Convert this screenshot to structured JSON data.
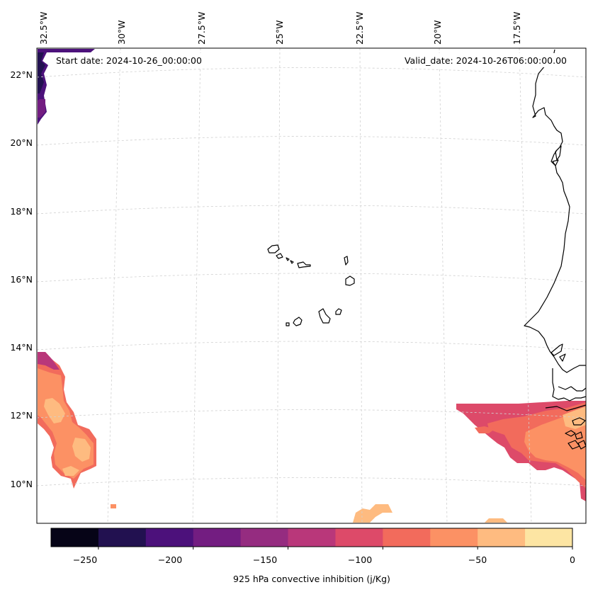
{
  "map": {
    "start_date_label": "Start date: 2024-10-26_00:00:00",
    "valid_date_label": "Valid_date: 2024-10-26T06:00:00.00",
    "lon_labels": [
      "32.5°W",
      "30°W",
      "27.5°W",
      "25°W",
      "22.5°W",
      "20°W",
      "17.5°W"
    ],
    "lat_labels": [
      "22°N",
      "20°N",
      "18°N",
      "16°N",
      "14°N",
      "12°N",
      "10°N"
    ]
  },
  "colorbar": {
    "label": "925 hPa convective inhibition (j/Kg)",
    "ticks": [
      "−250",
      "−200",
      "−150",
      "−100",
      "−50",
      "0"
    ],
    "range": [
      -275,
      0
    ],
    "step": 25,
    "colors": [
      "#060417",
      "#221150",
      "#4c117b",
      "#731d81",
      "#952c80",
      "#b9377a",
      "#dd4a69",
      "#f26b5c",
      "#fc9164",
      "#febb80",
      "#fde5a3"
    ]
  }
}
